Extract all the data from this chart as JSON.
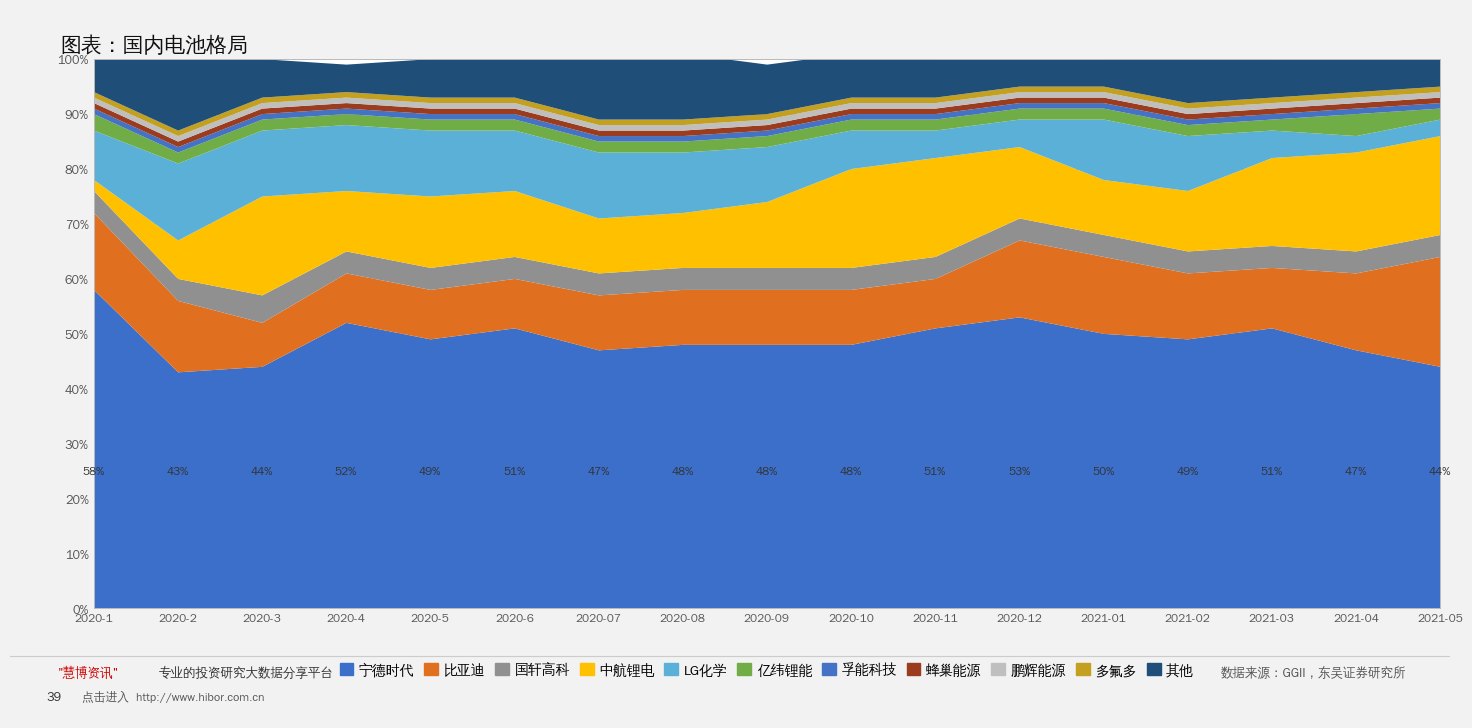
{
  "title": "图表：国内电池格局",
  "x_labels": [
    "2020-1",
    "2020-2",
    "2020-3",
    "2020-4",
    "2020-5",
    "2020-6",
    "2020-07",
    "2020-08",
    "2020-09",
    "2020-10",
    "2020-11",
    "2020-12",
    "2021-01",
    "2021-02",
    "2021-03",
    "2021-04",
    "2021-05"
  ],
  "annotations": [
    "58%",
    "43%",
    "44%",
    "52%",
    "49%",
    "51%",
    "47%",
    "48%",
    "48%",
    "48%",
    "51%",
    "53%",
    "50%",
    "49%",
    "51%",
    "47%",
    "44%"
  ],
  "series": [
    {
      "name": "宁德时代",
      "color": "#3B6FC9",
      "values": [
        58,
        43,
        44,
        52,
        49,
        51,
        47,
        48,
        48,
        48,
        51,
        53,
        50,
        49,
        51,
        47,
        44
      ]
    },
    {
      "name": "比亚迪",
      "color": "#E07020",
      "values": [
        14,
        13,
        8,
        9,
        9,
        9,
        10,
        10,
        10,
        10,
        9,
        14,
        14,
        12,
        11,
        14,
        20
      ]
    },
    {
      "name": "国轩高科",
      "color": "#909090",
      "values": [
        4,
        4,
        5,
        4,
        4,
        4,
        4,
        4,
        4,
        4,
        4,
        4,
        4,
        4,
        4,
        4,
        4
      ]
    },
    {
      "name": "中航锂电",
      "color": "#FFC000",
      "values": [
        2,
        7,
        18,
        11,
        13,
        12,
        10,
        10,
        12,
        18,
        18,
        13,
        10,
        11,
        16,
        18,
        18
      ]
    },
    {
      "name": "LG化学",
      "color": "#5BB0D8",
      "values": [
        9,
        14,
        12,
        12,
        12,
        11,
        12,
        11,
        10,
        7,
        5,
        5,
        11,
        10,
        5,
        3,
        3
      ]
    },
    {
      "name": "亿纬锂能",
      "color": "#70AD47",
      "values": [
        3,
        2,
        2,
        2,
        2,
        2,
        2,
        2,
        2,
        2,
        2,
        2,
        2,
        2,
        2,
        4,
        2
      ]
    },
    {
      "name": "孚能科技",
      "color": "#4472C4",
      "values": [
        1,
        1,
        1,
        1,
        1,
        1,
        1,
        1,
        1,
        1,
        1,
        1,
        1,
        1,
        1,
        1,
        1
      ]
    },
    {
      "name": "蜂巢能源",
      "color": "#9B3C1E",
      "values": [
        1,
        1,
        1,
        1,
        1,
        1,
        1,
        1,
        1,
        1,
        1,
        1,
        1,
        1,
        1,
        1,
        1
      ]
    },
    {
      "name": "鹏辉能源",
      "color": "#BFBFBF",
      "values": [
        1,
        1,
        1,
        1,
        1,
        1,
        1,
        1,
        1,
        1,
        1,
        1,
        1,
        1,
        1,
        1,
        1
      ]
    },
    {
      "name": "多氟多",
      "color": "#C4A020",
      "values": [
        1,
        1,
        1,
        1,
        1,
        1,
        1,
        1,
        1,
        1,
        1,
        1,
        1,
        1,
        1,
        1,
        1
      ]
    },
    {
      "name": "其他",
      "color": "#1F4E79",
      "values": [
        6,
        13,
        7,
        5,
        7,
        8,
        11,
        12,
        9,
        8,
        7,
        5,
        5,
        9,
        7,
        6,
        5
      ]
    }
  ],
  "footer_right": "数据来源：GGII，东吴证券研究所",
  "page_number": "39",
  "page_link": "点击进入  http://www.hibor.com.cn",
  "background_color": "#FFFFFF",
  "chart_bg": "#FFFFFF",
  "outer_bg": "#F0F0F0",
  "ylim": [
    0,
    100
  ]
}
